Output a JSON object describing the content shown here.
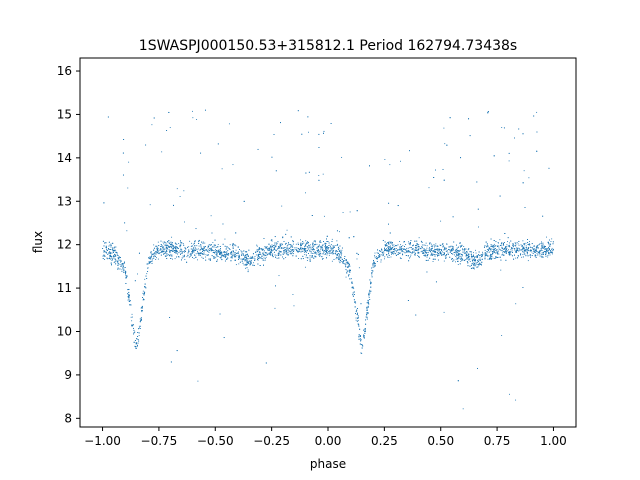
{
  "chart_data": {
    "type": "scatter",
    "title": "1SWASPJ000150.53+315812.1 Period 162794.73438s",
    "xlabel": "phase",
    "ylabel": "flux",
    "xlim": [
      -1.1,
      1.1
    ],
    "ylim": [
      7.8,
      16.3
    ],
    "xticks": [
      -1.0,
      -0.75,
      -0.5,
      -0.25,
      0.0,
      0.25,
      0.5,
      0.75,
      1.0
    ],
    "xtick_labels": [
      "−1.00",
      "−0.75",
      "−0.50",
      "−0.25",
      "0.00",
      "0.25",
      "0.50",
      "0.75",
      "1.00"
    ],
    "yticks": [
      8,
      9,
      10,
      11,
      12,
      13,
      14,
      15,
      16
    ],
    "ytick_labels": [
      "8",
      "9",
      "10",
      "11",
      "12",
      "13",
      "14",
      "15",
      "16"
    ],
    "grid": false,
    "marker_color": "#1f77b4",
    "series": [
      {
        "profile": {
          "phase": [
            -1.0,
            -0.95,
            -0.9,
            -0.87,
            -0.85,
            -0.83,
            -0.8,
            -0.75,
            -0.5,
            -0.4,
            -0.35,
            -0.3,
            -0.25,
            0.0,
            0.05,
            0.1,
            0.13,
            0.15,
            0.17,
            0.2,
            0.25,
            0.5,
            0.6,
            0.65,
            0.7,
            0.75,
            1.0
          ],
          "flux": [
            11.9,
            11.8,
            11.4,
            10.3,
            9.6,
            10.3,
            11.6,
            11.9,
            11.85,
            11.8,
            11.6,
            11.8,
            11.9,
            11.9,
            11.8,
            11.4,
            10.3,
            9.6,
            10.3,
            11.6,
            11.9,
            11.85,
            11.8,
            11.6,
            11.8,
            11.9,
            11.9
          ]
        },
        "scatter_band": 0.3,
        "outlier_range": [
          8.2,
          15.8
        ]
      }
    ]
  }
}
